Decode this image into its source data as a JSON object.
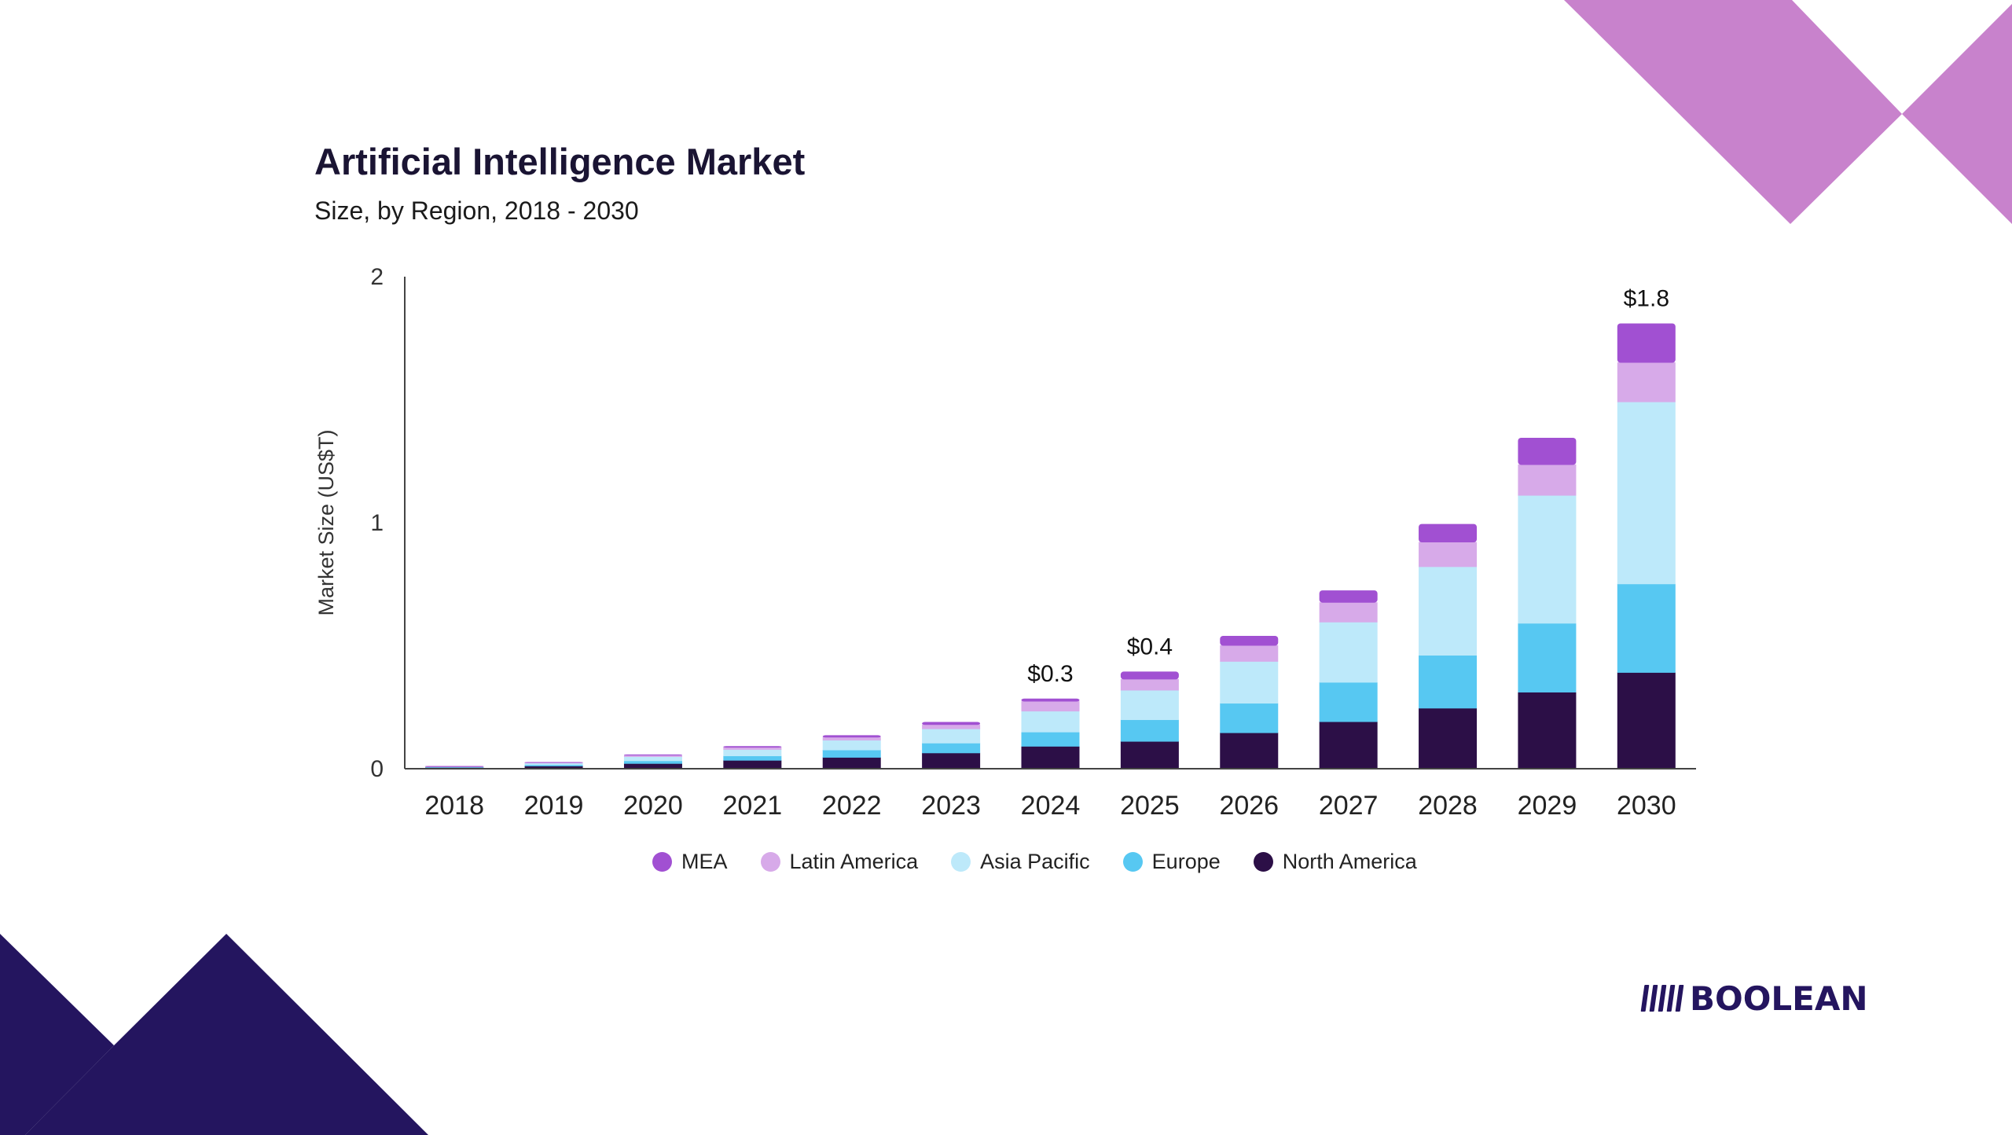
{
  "chart_data": {
    "type": "bar",
    "stacked": true,
    "title": "Artificial Intelligence Market",
    "subtitle": "Size, by Region, 2018 - 2030",
    "xlabel": "",
    "ylabel": "Market Size (US$T)",
    "ylim": [
      0,
      2
    ],
    "yticks": [
      "0",
      "1",
      "2"
    ],
    "categories": [
      "2018",
      "2019",
      "2020",
      "2021",
      "2022",
      "2023",
      "2024",
      "2025",
      "2026",
      "2027",
      "2028",
      "2029",
      "2030"
    ],
    "series": [
      {
        "name": "North America",
        "color": "#2c0f47",
        "values": [
          0.005,
          0.01,
          0.02,
          0.033,
          0.045,
          0.063,
          0.09,
          0.11,
          0.145,
          0.19,
          0.245,
          0.31,
          0.39
        ]
      },
      {
        "name": "Europe",
        "color": "#57c8f2",
        "values": [
          0.002,
          0.005,
          0.011,
          0.018,
          0.03,
          0.04,
          0.058,
          0.088,
          0.12,
          0.16,
          0.215,
          0.28,
          0.36
        ]
      },
      {
        "name": "Asia Pacific",
        "color": "#bde9fa",
        "values": [
          0.002,
          0.007,
          0.017,
          0.026,
          0.04,
          0.058,
          0.085,
          0.12,
          0.17,
          0.245,
          0.36,
          0.52,
          0.74
        ]
      },
      {
        "name": "Latin America",
        "color": "#d7aae9",
        "values": [
          0.001,
          0.003,
          0.006,
          0.009,
          0.012,
          0.017,
          0.04,
          0.045,
          0.065,
          0.08,
          0.1,
          0.125,
          0.16
        ]
      },
      {
        "name": "MEA",
        "color": "#a150d2",
        "values": [
          0.0005,
          0.002,
          0.004,
          0.006,
          0.009,
          0.012,
          0.012,
          0.032,
          0.04,
          0.05,
          0.075,
          0.11,
          0.16
        ]
      }
    ],
    "annotations": [
      {
        "category": "2024",
        "label": "$0.3"
      },
      {
        "category": "2025",
        "label": "$0.4"
      },
      {
        "category": "2030",
        "label": "$1.8"
      }
    ],
    "legend": {
      "position": "bottom",
      "order": [
        "MEA",
        "Latin America",
        "Asia Pacific",
        "Europe",
        "North America"
      ]
    }
  },
  "brand": {
    "name": "BOOLEAN"
  },
  "colors": {
    "accent_purple": "#c882cc",
    "accent_navy": "#24155f"
  }
}
